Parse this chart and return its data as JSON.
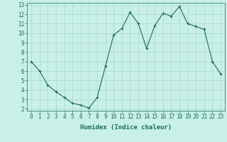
{
  "xlabel": "Humidex (Indice chaleur)",
  "x_values": [
    0,
    1,
    2,
    3,
    4,
    5,
    6,
    7,
    8,
    9,
    10,
    11,
    12,
    13,
    14,
    15,
    16,
    17,
    18,
    19,
    20,
    21,
    22,
    23
  ],
  "y_values": [
    7.0,
    6.0,
    4.5,
    3.8,
    3.2,
    2.6,
    2.4,
    2.1,
    3.2,
    6.5,
    9.8,
    10.5,
    12.2,
    11.0,
    8.4,
    10.8,
    12.1,
    11.8,
    12.8,
    11.0,
    10.7,
    10.4,
    7.0,
    5.7
  ],
  "line_color": "#1a6b5e",
  "marker": "+",
  "bg_color": "#c8f0e8",
  "grid_color": "#a8d8ce",
  "tick_color": "#1a6b5e",
  "label_color": "#1a6b5e",
  "ylim": [
    1.8,
    13.2
  ],
  "xlim": [
    -0.5,
    23.5
  ],
  "yticks": [
    2,
    3,
    4,
    5,
    6,
    7,
    8,
    9,
    10,
    11,
    12,
    13
  ],
  "xticks": [
    0,
    1,
    2,
    3,
    4,
    5,
    6,
    7,
    8,
    9,
    10,
    11,
    12,
    13,
    14,
    15,
    16,
    17,
    18,
    19,
    20,
    21,
    22,
    23
  ],
  "tick_fontsize": 5.5,
  "label_fontsize": 6.5
}
